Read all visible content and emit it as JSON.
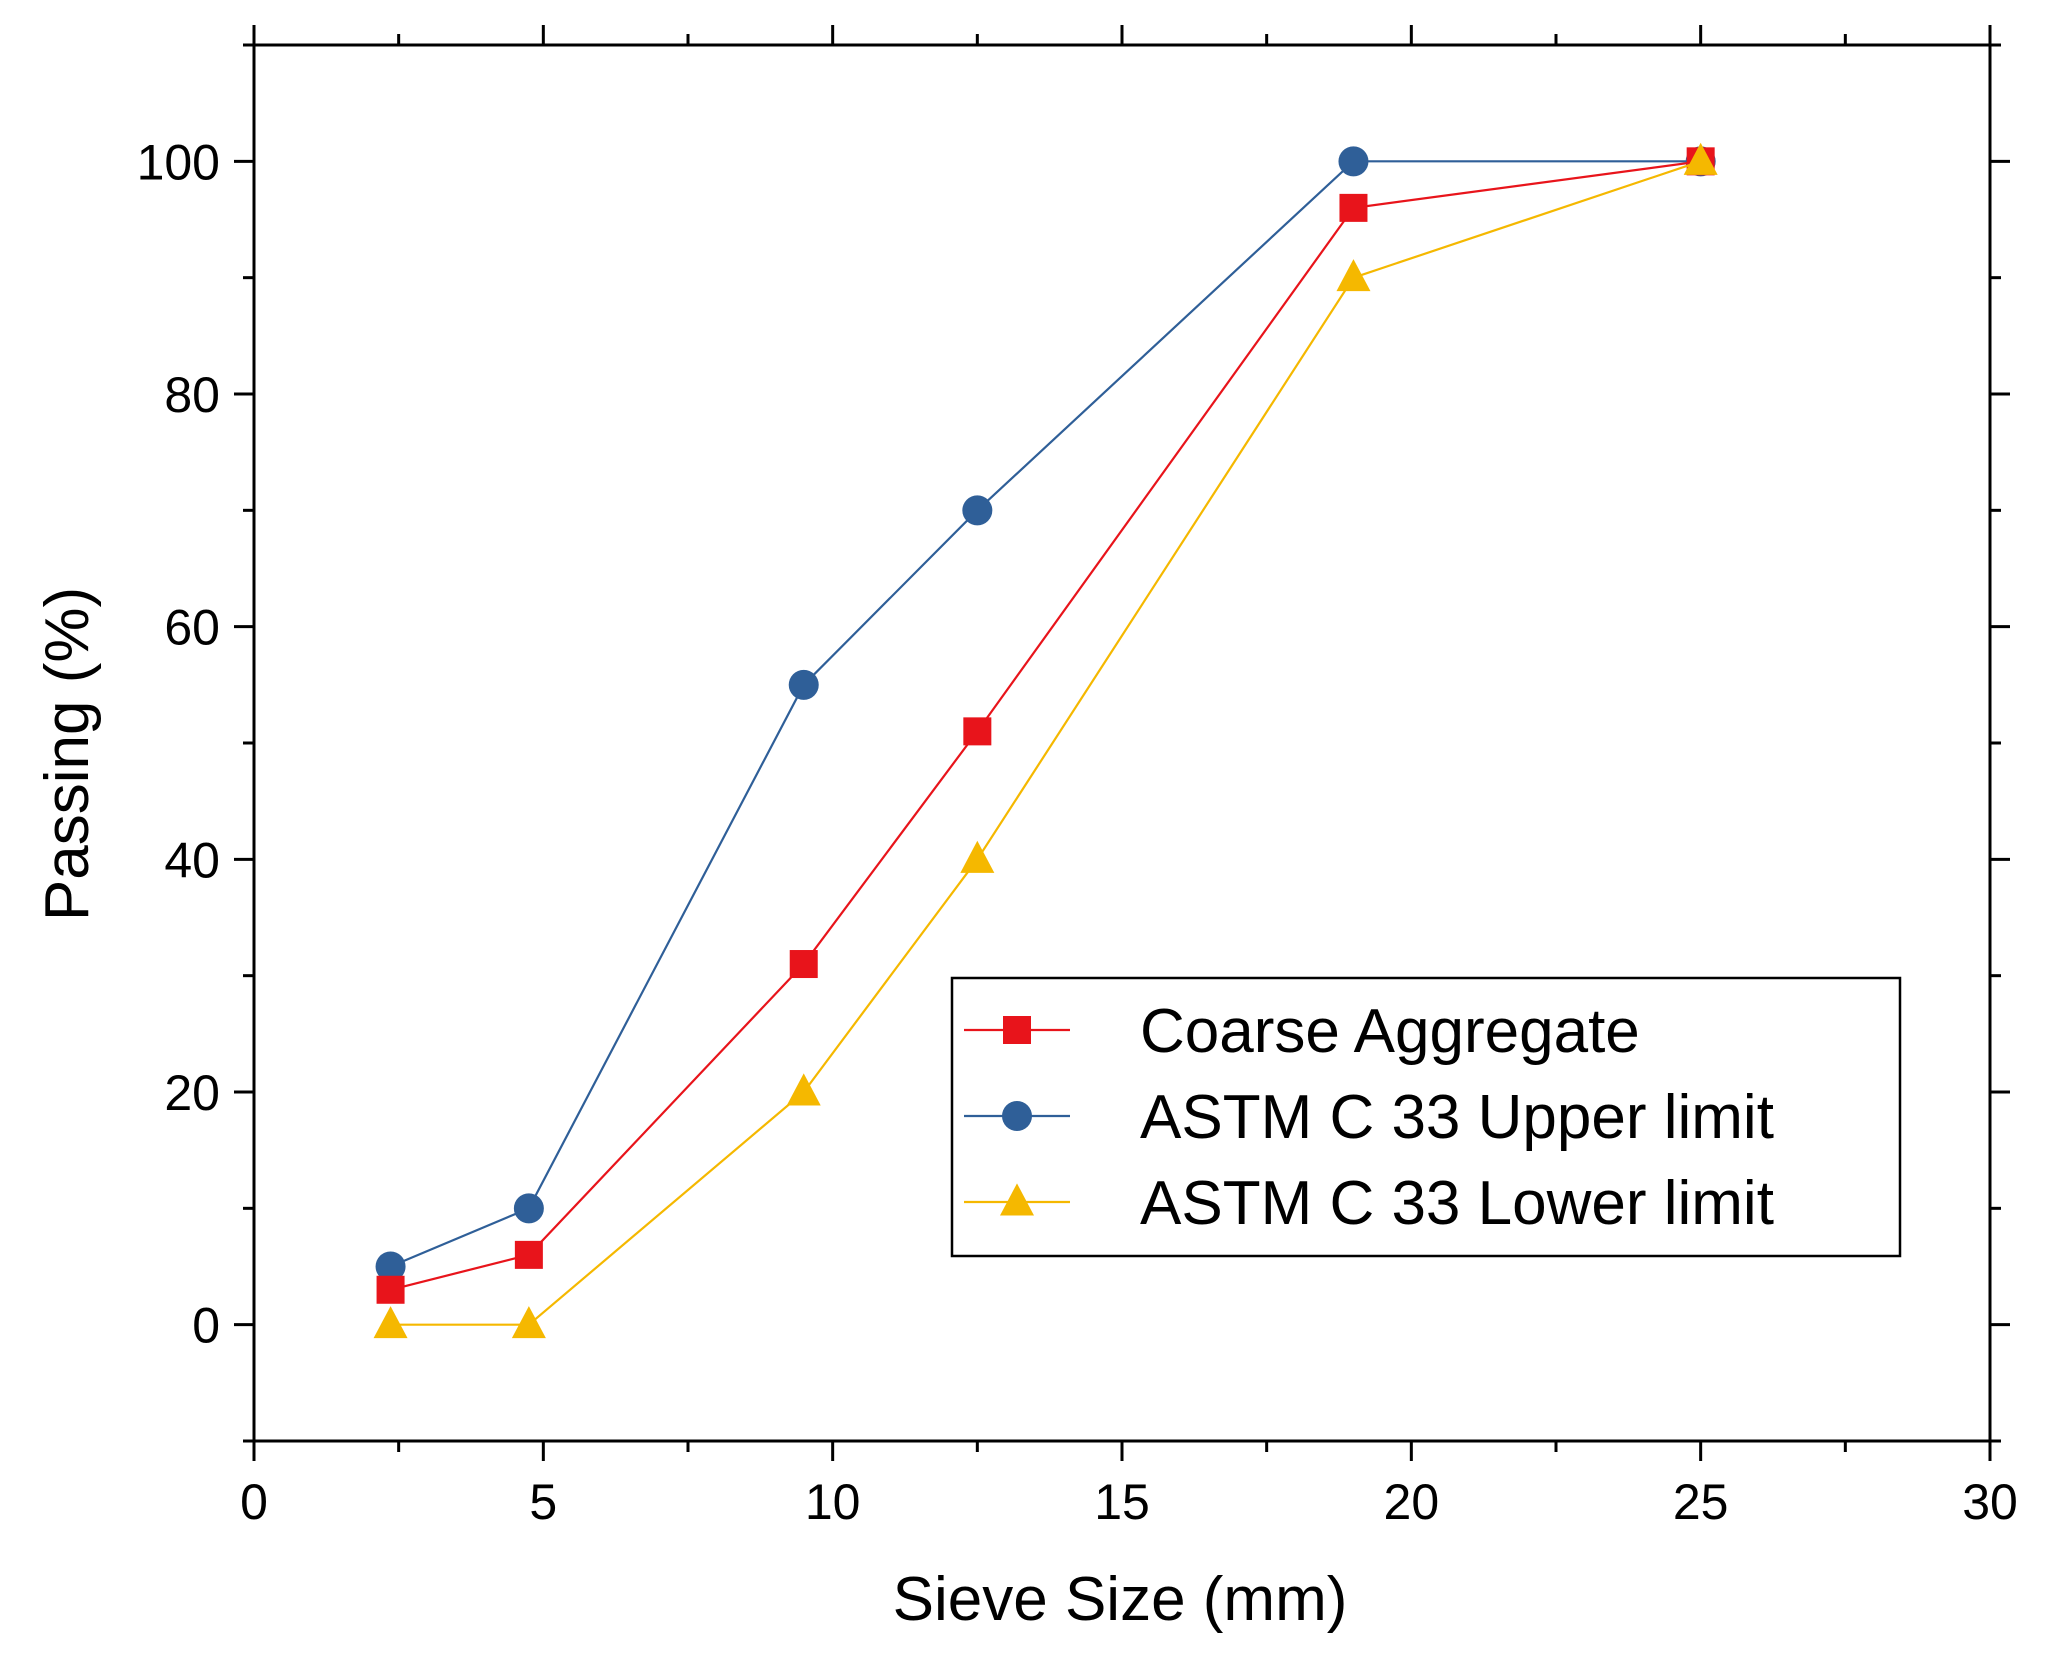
{
  "chart_data": {
    "type": "line",
    "xlabel": "Sieve Size (mm)",
    "ylabel": "Passing (%)",
    "xlim": [
      0,
      30
    ],
    "ylim": [
      -10,
      110
    ],
    "xticks": [
      0,
      5,
      10,
      15,
      20,
      25,
      30
    ],
    "yticks": [
      0,
      20,
      40,
      60,
      80,
      100
    ],
    "grid": false,
    "legend": "bottom-right",
    "series": [
      {
        "name": "Coarse Aggregate",
        "marker": "square",
        "color": "#e8141b",
        "x": [
          2.36,
          4.75,
          9.5,
          12.5,
          19,
          25
        ],
        "y": [
          3,
          6,
          31,
          51,
          96,
          100
        ]
      },
      {
        "name": "ASTM C 33 Upper limit",
        "marker": "circle",
        "color": "#2f5f98",
        "x": [
          2.36,
          4.75,
          9.5,
          12.5,
          19,
          25
        ],
        "y": [
          5,
          10,
          55,
          70,
          100,
          100
        ]
      },
      {
        "name": "ASTM C 33 Lower limit",
        "marker": "triangle",
        "color": "#f5b800",
        "x": [
          2.36,
          4.75,
          9.5,
          12.5,
          19,
          25
        ],
        "y": [
          0,
          0,
          20,
          40,
          90,
          100
        ]
      }
    ]
  }
}
